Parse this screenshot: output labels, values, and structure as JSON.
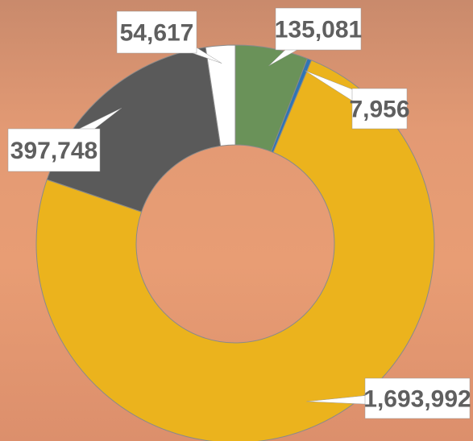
{
  "chart_data": {
    "type": "donut",
    "values": [
      135081,
      7956,
      1693992,
      397748,
      54617
    ],
    "value_labels": [
      "135,081",
      "7,956",
      "1,693,992",
      "397,748",
      "54,617"
    ],
    "colors": [
      "#6a9259",
      "#2e75b6",
      "#ebb31d",
      "#5a5a5a",
      "#ffffff"
    ]
  }
}
